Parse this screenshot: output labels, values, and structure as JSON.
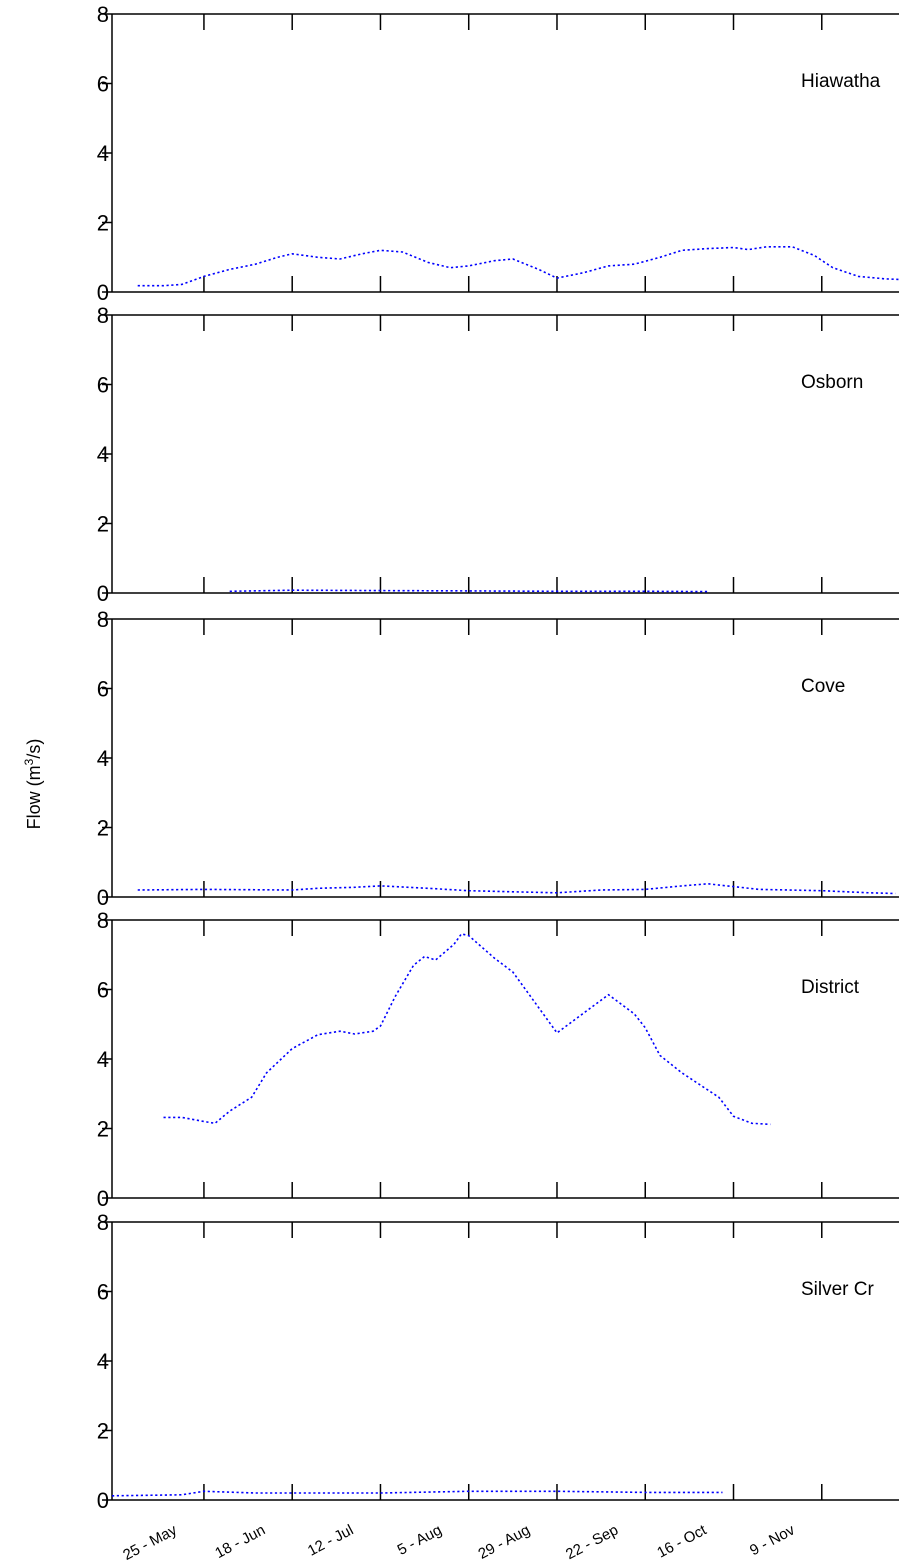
{
  "chart_data": {
    "type": "line",
    "ylabel": "Flow  (m³/s)",
    "ylabel_parts": {
      "prefix": "Flow  (m",
      "superscript": "3",
      "suffix": "/s)"
    },
    "x_tick_labels": [
      "25 - May",
      "18 - Jun",
      "12 - Jul",
      "5 - Aug",
      "29 - Aug",
      "22 - Sep",
      "16 - Oct",
      "9 - Nov"
    ],
    "x_tick_dates": [
      "05-25",
      "06-18",
      "07-12",
      "08-05",
      "08-29",
      "09-22",
      "10-16",
      "11-09"
    ],
    "x_range": [
      "04-30",
      "11-30"
    ],
    "y_range": [
      0,
      8
    ],
    "y_ticks": [
      0,
      2,
      4,
      6,
      8
    ],
    "line_style": "dotted",
    "line_color": "#0000ff",
    "axis_color": "#000000",
    "panels": [
      {
        "name": "Hiawatha",
        "points": [
          [
            "05-07",
            0.18
          ],
          [
            "05-14",
            0.18
          ],
          [
            "05-19",
            0.22
          ],
          [
            "05-25",
            0.45
          ],
          [
            "06-01",
            0.65
          ],
          [
            "06-08",
            0.8
          ],
          [
            "06-14",
            1.0
          ],
          [
            "06-18",
            1.1
          ],
          [
            "06-25",
            1.0
          ],
          [
            "07-01",
            0.95
          ],
          [
            "07-07",
            1.1
          ],
          [
            "07-12",
            1.2
          ],
          [
            "07-18",
            1.15
          ],
          [
            "07-25",
            0.85
          ],
          [
            "07-31",
            0.7
          ],
          [
            "08-05",
            0.75
          ],
          [
            "08-12",
            0.9
          ],
          [
            "08-17",
            0.95
          ],
          [
            "08-24",
            0.65
          ],
          [
            "08-29",
            0.4
          ],
          [
            "09-05",
            0.55
          ],
          [
            "09-12",
            0.75
          ],
          [
            "09-19",
            0.8
          ],
          [
            "09-26",
            1.0
          ],
          [
            "10-02",
            1.2
          ],
          [
            "10-09",
            1.25
          ],
          [
            "10-16",
            1.28
          ],
          [
            "10-20",
            1.22
          ],
          [
            "10-25",
            1.3
          ],
          [
            "11-01",
            1.3
          ],
          [
            "11-07",
            1.05
          ],
          [
            "11-12",
            0.7
          ],
          [
            "11-19",
            0.45
          ],
          [
            "11-26",
            0.38
          ],
          [
            "12-02",
            0.35
          ]
        ]
      },
      {
        "name": "Osborn",
        "points": [
          [
            "06-01",
            0.05
          ],
          [
            "06-18",
            0.08
          ],
          [
            "07-12",
            0.07
          ],
          [
            "08-05",
            0.06
          ],
          [
            "08-29",
            0.05
          ],
          [
            "09-22",
            0.05
          ],
          [
            "10-09",
            0.04
          ]
        ]
      },
      {
        "name": "Cove",
        "points": [
          [
            "05-07",
            0.2
          ],
          [
            "05-25",
            0.22
          ],
          [
            "06-18",
            0.2
          ],
          [
            "06-25",
            0.25
          ],
          [
            "07-05",
            0.28
          ],
          [
            "07-12",
            0.32
          ],
          [
            "07-25",
            0.25
          ],
          [
            "08-05",
            0.18
          ],
          [
            "08-17",
            0.15
          ],
          [
            "08-29",
            0.12
          ],
          [
            "09-10",
            0.2
          ],
          [
            "09-22",
            0.22
          ],
          [
            "10-02",
            0.32
          ],
          [
            "10-09",
            0.38
          ],
          [
            "10-16",
            0.3
          ],
          [
            "10-23",
            0.22
          ],
          [
            "11-09",
            0.18
          ],
          [
            "11-22",
            0.12
          ],
          [
            "11-29",
            0.1
          ]
        ]
      },
      {
        "name": "District",
        "points": [
          [
            "05-14",
            2.32
          ],
          [
            "05-19",
            2.32
          ],
          [
            "05-25",
            2.2
          ],
          [
            "05-28",
            2.15
          ],
          [
            "06-01",
            2.5
          ],
          [
            "06-07",
            2.9
          ],
          [
            "06-11",
            3.6
          ],
          [
            "06-18",
            4.3
          ],
          [
            "06-25",
            4.7
          ],
          [
            "07-01",
            4.8
          ],
          [
            "07-05",
            4.72
          ],
          [
            "07-10",
            4.8
          ],
          [
            "07-12",
            4.95
          ],
          [
            "07-16",
            5.8
          ],
          [
            "07-21",
            6.7
          ],
          [
            "07-24",
            6.95
          ],
          [
            "07-27",
            6.85
          ],
          [
            "08-01",
            7.3
          ],
          [
            "08-03",
            7.6
          ],
          [
            "08-05",
            7.55
          ],
          [
            "08-12",
            6.9
          ],
          [
            "08-17",
            6.5
          ],
          [
            "08-29",
            4.75
          ],
          [
            "09-05",
            5.3
          ],
          [
            "09-12",
            5.85
          ],
          [
            "09-19",
            5.3
          ],
          [
            "09-22",
            4.9
          ],
          [
            "09-26",
            4.1
          ],
          [
            "10-02",
            3.6
          ],
          [
            "10-07",
            3.25
          ],
          [
            "10-12",
            2.9
          ],
          [
            "10-16",
            2.35
          ],
          [
            "10-21",
            2.15
          ],
          [
            "10-26",
            2.12
          ]
        ]
      },
      {
        "name": "Silver Cr",
        "points": [
          [
            "04-30",
            0.12
          ],
          [
            "05-19",
            0.15
          ],
          [
            "05-25",
            0.25
          ],
          [
            "06-08",
            0.2
          ],
          [
            "06-18",
            0.2
          ],
          [
            "07-12",
            0.2
          ],
          [
            "08-05",
            0.25
          ],
          [
            "08-29",
            0.25
          ],
          [
            "09-22",
            0.22
          ],
          [
            "10-02",
            0.22
          ],
          [
            "10-13",
            0.22
          ]
        ]
      }
    ]
  }
}
